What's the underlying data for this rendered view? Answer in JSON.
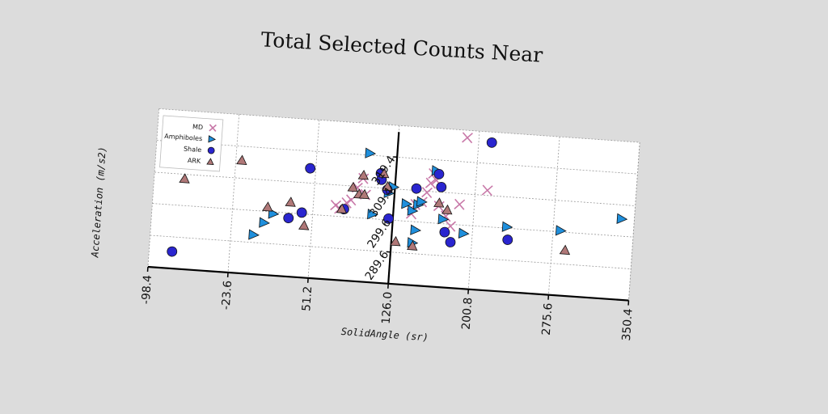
{
  "chart_data": {
    "type": "scatter",
    "title": "Total Selected Counts Near",
    "xlabel": "SolidAngle (sr)",
    "ylabel": "Acceleration (m/s2)",
    "xlim": [
      -98.4,
      350.4
    ],
    "ylim": [
      279.7,
      329.3
    ],
    "x_ticks": [
      "-98.4",
      "-23.6",
      "51.2",
      "126.0",
      "200.8",
      "275.6",
      "350.4"
    ],
    "y_ticks": [
      "289.6",
      "299.6",
      "309.4",
      "319.4"
    ],
    "grid": true,
    "legend_position": "top-left",
    "series": [
      {
        "name": "MD",
        "marker": "x",
        "color": "#c878a8",
        "points": [
          [
            72,
            303
          ],
          [
            76,
            302
          ],
          [
            82,
            304
          ],
          [
            86,
            305
          ],
          [
            91,
            309
          ],
          [
            96,
            312
          ],
          [
            99,
            307
          ],
          [
            143,
            302
          ],
          [
            146,
            305
          ],
          [
            152,
            306
          ],
          [
            156,
            309
          ],
          [
            159,
            312
          ],
          [
            161,
            315
          ],
          [
            164,
            313
          ],
          [
            168,
            305
          ],
          [
            175,
            302
          ],
          [
            180,
            299
          ],
          [
            187,
            306
          ],
          [
            190,
            327
          ],
          [
            212,
            311
          ]
        ]
      },
      {
        "name": "Amphiboles",
        "marker": "triangle-right",
        "color": "#1f8fdc",
        "points": [
          [
            -2,
            292
          ],
          [
            7,
            296
          ],
          [
            15,
            299
          ],
          [
            101,
            320
          ],
          [
            107,
            301
          ],
          [
            121,
            308
          ],
          [
            125,
            310
          ],
          [
            138,
            305
          ],
          [
            144,
            303
          ],
          [
            146,
            293
          ],
          [
            148,
            297
          ],
          [
            149,
            305
          ],
          [
            152,
            306
          ],
          [
            164,
            316
          ],
          [
            173,
            301
          ],
          [
            193,
            297
          ],
          [
            233,
            300
          ],
          [
            283,
            300
          ],
          [
            339,
            305
          ]
        ]
      },
      {
        "name": "Shale",
        "marker": "circle",
        "color": "#2a25cf",
        "points": [
          [
            -77,
            285
          ],
          [
            29,
            298
          ],
          [
            41,
            300
          ],
          [
            46,
            314
          ],
          [
            80,
            302
          ],
          [
            112,
            314
          ],
          [
            113,
            312
          ],
          [
            119,
            309
          ],
          [
            122,
            300
          ],
          [
            146,
            310
          ],
          [
            166,
            315
          ],
          [
            169,
            311
          ],
          [
            175,
            297
          ],
          [
            181,
            294
          ],
          [
            213,
            326
          ],
          [
            234,
            296
          ]
        ]
      },
      {
        "name": "ARK",
        "marker": "triangle-up",
        "color": "#b07878",
        "points": [
          [
            -70,
            308
          ],
          [
            -18,
            315
          ],
          [
            9,
            301
          ],
          [
            30,
            303
          ],
          [
            44,
            296
          ],
          [
            78,
            302
          ],
          [
            87,
            309
          ],
          [
            93,
            307
          ],
          [
            96,
            313
          ],
          [
            98,
            307
          ],
          [
            115,
            314
          ],
          [
            119,
            310
          ],
          [
            130,
            293
          ],
          [
            146,
            292
          ],
          [
            168,
            306
          ],
          [
            176,
            304
          ],
          [
            288,
            294
          ]
        ]
      }
    ]
  }
}
